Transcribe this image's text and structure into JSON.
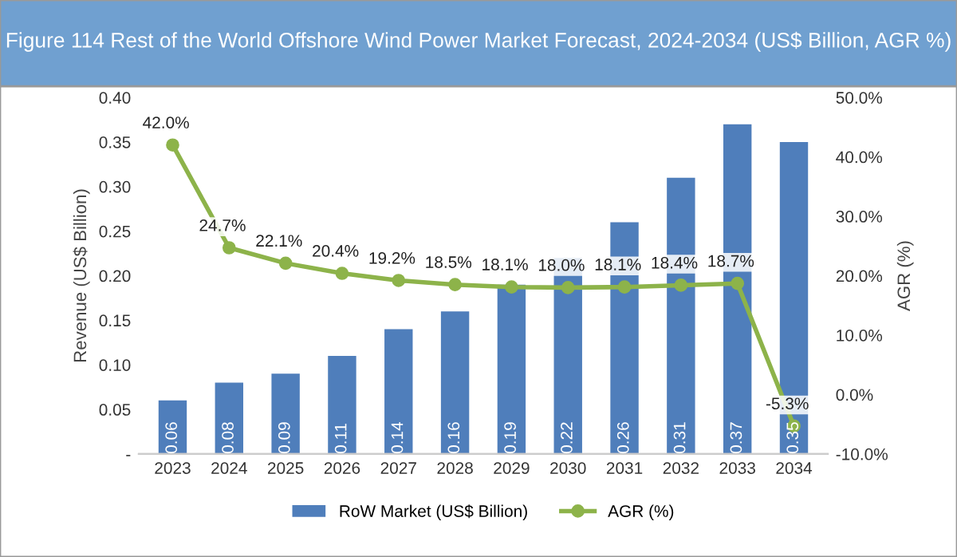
{
  "chart_data": {
    "type": "bar",
    "title": "Figure 114 Rest of the World Offshore Wind Power Market Forecast, 2024-2034 (US$ Billion, AGR %)",
    "ylabel": "Revenue (US$ Billion)",
    "y2label": "AGR (%)",
    "categories": [
      "2023",
      "2024",
      "2025",
      "2026",
      "2027",
      "2028",
      "2029",
      "2030",
      "2031",
      "2032",
      "2033",
      "2034"
    ],
    "series": [
      {
        "name": "RoW Market (US$ Billion)",
        "color": "#4f7ebb",
        "values": [
          0.06,
          0.08,
          0.09,
          0.11,
          0.14,
          0.16,
          0.19,
          0.22,
          0.26,
          0.31,
          0.37,
          0.35
        ],
        "value_labels": [
          "0.06",
          "0.08",
          "0.09",
          "0.11",
          "0.14",
          "0.16",
          "0.19",
          "0.22",
          "0.26",
          "0.31",
          "0.37",
          "0.35"
        ]
      },
      {
        "name": "AGR (%)",
        "type": "line",
        "axis": "y2",
        "color": "#8db34a",
        "marker": "circle",
        "values": [
          42.0,
          24.7,
          22.1,
          20.4,
          19.2,
          18.5,
          18.1,
          18.0,
          18.1,
          18.4,
          18.7,
          -5.3
        ],
        "value_labels": [
          "42.0%",
          "24.7%",
          "22.1%",
          "20.4%",
          "19.2%",
          "18.5%",
          "18.1%",
          "18.0%",
          "18.1%",
          "18.4%",
          "18.7%",
          "-5.3%"
        ]
      }
    ],
    "ylim": [
      0,
      0.4
    ],
    "yticks": [
      {
        "value": 0,
        "label": "-"
      },
      {
        "value": 0.05,
        "label": "0.05"
      },
      {
        "value": 0.1,
        "label": "0.10"
      },
      {
        "value": 0.15,
        "label": "0.15"
      },
      {
        "value": 0.2,
        "label": "0.20"
      },
      {
        "value": 0.25,
        "label": "0.25"
      },
      {
        "value": 0.3,
        "label": "0.30"
      },
      {
        "value": 0.35,
        "label": "0.35"
      },
      {
        "value": 0.4,
        "label": "0.40"
      }
    ],
    "y2lim": [
      -10,
      50
    ],
    "y2ticks": [
      {
        "value": -10,
        "label": "-10.0%"
      },
      {
        "value": 0,
        "label": "0.0%"
      },
      {
        "value": 10,
        "label": "10.0%"
      },
      {
        "value": 20,
        "label": "20.0%"
      },
      {
        "value": 30,
        "label": "30.0%"
      },
      {
        "value": 40,
        "label": "40.0%"
      },
      {
        "value": 50,
        "label": "50.0%"
      }
    ],
    "grid": false,
    "legend": "bottom"
  }
}
